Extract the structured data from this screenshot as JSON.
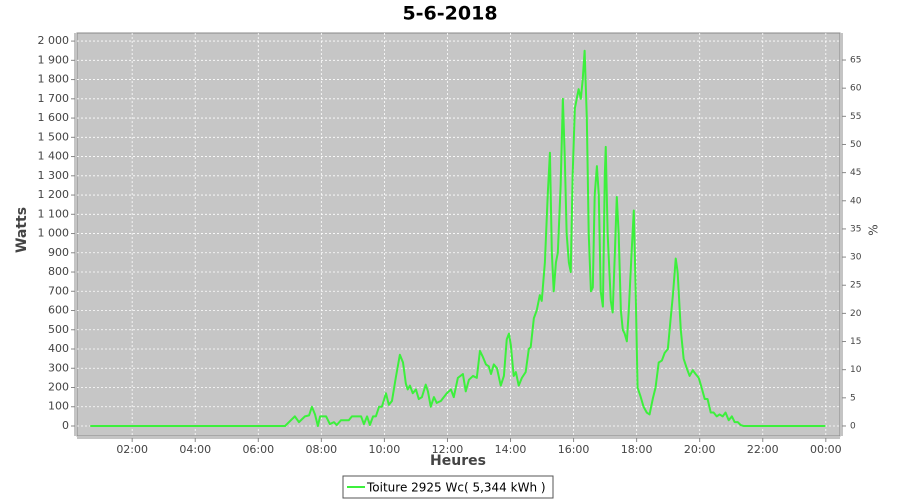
{
  "chart_data": {
    "type": "line",
    "title": "5-6-2018",
    "x_label": "Heures",
    "y_label": "Watts",
    "y2_label": "%",
    "xlim": [
      0.25,
      24.45
    ],
    "xticks": [
      {
        "value": 2,
        "label": "02:00"
      },
      {
        "value": 4,
        "label": "04:00"
      },
      {
        "value": 6,
        "label": "06:00"
      },
      {
        "value": 8,
        "label": "08:00"
      },
      {
        "value": 10,
        "label": "10:00"
      },
      {
        "value": 12,
        "label": "12:00"
      },
      {
        "value": 14,
        "label": "14:00"
      },
      {
        "value": 16,
        "label": "16:00"
      },
      {
        "value": 18,
        "label": "18:00"
      },
      {
        "value": 20,
        "label": "20:00"
      },
      {
        "value": 22,
        "label": "22:00"
      },
      {
        "value": 24,
        "label": "00:00"
      }
    ],
    "ylim": [
      -52,
      2042
    ],
    "yticks": [
      0,
      100,
      200,
      300,
      400,
      500,
      600,
      700,
      800,
      900,
      {
        "value": 1000,
        "label": "1 000"
      },
      {
        "value": 1100,
        "label": "1 100"
      },
      {
        "value": 1200,
        "label": "1 200"
      },
      {
        "value": 1300,
        "label": "1 300"
      },
      {
        "value": 1400,
        "label": "1 400"
      },
      {
        "value": 1500,
        "label": "1 500"
      },
      {
        "value": 1600,
        "label": "1 600"
      },
      {
        "value": 1700,
        "label": "1 700"
      },
      {
        "value": 1800,
        "label": "1 800"
      },
      {
        "value": 1900,
        "label": "1 900"
      },
      {
        "value": 2000,
        "label": "2 000"
      }
    ],
    "y2lim": [
      -1.78,
      69.8
    ],
    "y2ticks": [
      0,
      5,
      10,
      15,
      20,
      25,
      30,
      35,
      40,
      45,
      50,
      55,
      60,
      65
    ],
    "grid": true,
    "legend": "bottom",
    "background": "#c6c6c6",
    "x": [
      0.67,
      6.85,
      6.91,
      7.16,
      7.29,
      7.48,
      7.61,
      7.7,
      7.8,
      7.89,
      7.96,
      8.15,
      8.27,
      8.4,
      8.49,
      8.62,
      8.87,
      8.97,
      9.26,
      9.35,
      9.45,
      9.54,
      9.64,
      9.73,
      9.83,
      9.92,
      10.05,
      10.14,
      10.24,
      10.36,
      10.49,
      10.59,
      10.68,
      10.74,
      10.81,
      10.9,
      11.0,
      11.09,
      11.19,
      11.31,
      11.38,
      11.47,
      11.57,
      11.66,
      11.79,
      11.98,
      12.11,
      12.2,
      12.33,
      12.49,
      12.58,
      12.68,
      12.81,
      12.93,
      13.03,
      13.12,
      13.22,
      13.31,
      13.38,
      13.47,
      13.57,
      13.69,
      13.79,
      13.88,
      13.95,
      14.01,
      14.1,
      14.17,
      14.26,
      14.36,
      14.48,
      14.58,
      14.64,
      14.74,
      14.83,
      14.93,
      14.99,
      15.09,
      15.18,
      15.25,
      15.31,
      15.37,
      15.44,
      15.5,
      15.59,
      15.66,
      15.72,
      15.78,
      15.85,
      15.91,
      15.97,
      16.04,
      16.1,
      16.16,
      16.23,
      16.29,
      16.35,
      16.42,
      16.48,
      16.55,
      16.61,
      16.67,
      16.74,
      16.8,
      16.86,
      16.93,
      16.99,
      17.02,
      17.08,
      17.18,
      17.24,
      17.31,
      17.37,
      17.43,
      17.5,
      17.56,
      17.62,
      17.69,
      17.75,
      17.84,
      17.91,
      17.97,
      18.03,
      18.13,
      18.22,
      18.32,
      18.41,
      18.51,
      18.6,
      18.7,
      18.8,
      18.89,
      18.99,
      19.08,
      19.15,
      19.24,
      19.3,
      19.4,
      19.49,
      19.59,
      19.68,
      19.78,
      19.87,
      19.97,
      20.06,
      20.16,
      20.25,
      20.35,
      20.44,
      20.54,
      20.63,
      20.73,
      20.82,
      20.92,
      21.02,
      21.11,
      21.21,
      21.3,
      21.39,
      23.99
    ],
    "series": [
      {
        "name": "Toiture 2925 Wc( 5,344 kWh )",
        "color": "#3cf03c",
        "values": [
          0,
          0,
          10,
          50,
          20,
          50,
          55,
          100,
          60,
          0,
          50,
          50,
          10,
          20,
          5,
          30,
          30,
          50,
          50,
          10,
          50,
          5,
          50,
          50,
          100,
          100,
          170,
          110,
          130,
          250,
          370,
          330,
          220,
          190,
          210,
          170,
          190,
          140,
          150,
          215,
          180,
          100,
          150,
          120,
          130,
          170,
          190,
          150,
          250,
          270,
          180,
          240,
          260,
          250,
          390,
          360,
          320,
          310,
          270,
          320,
          300,
          210,
          260,
          450,
          480,
          420,
          260,
          280,
          210,
          250,
          280,
          400,
          410,
          560,
          600,
          680,
          650,
          850,
          1200,
          1420,
          900,
          700,
          850,
          900,
          1250,
          1700,
          1400,
          1000,
          850,
          800,
          1300,
          1650,
          1700,
          1750,
          1700,
          1800,
          1950,
          1600,
          1000,
          700,
          720,
          1200,
          1350,
          1200,
          700,
          620,
          1300,
          1450,
          1000,
          650,
          590,
          900,
          1190,
          1000,
          600,
          500,
          480,
          440,
          600,
          900,
          1120,
          700,
          200,
          150,
          100,
          70,
          60,
          140,
          200,
          330,
          340,
          380,
          400,
          560,
          680,
          870,
          800,
          500,
          350,
          300,
          260,
          290,
          270,
          250,
          200,
          140,
          140,
          70,
          70,
          50,
          60,
          50,
          70,
          30,
          50,
          20,
          20,
          5,
          0,
          0
        ]
      }
    ]
  }
}
